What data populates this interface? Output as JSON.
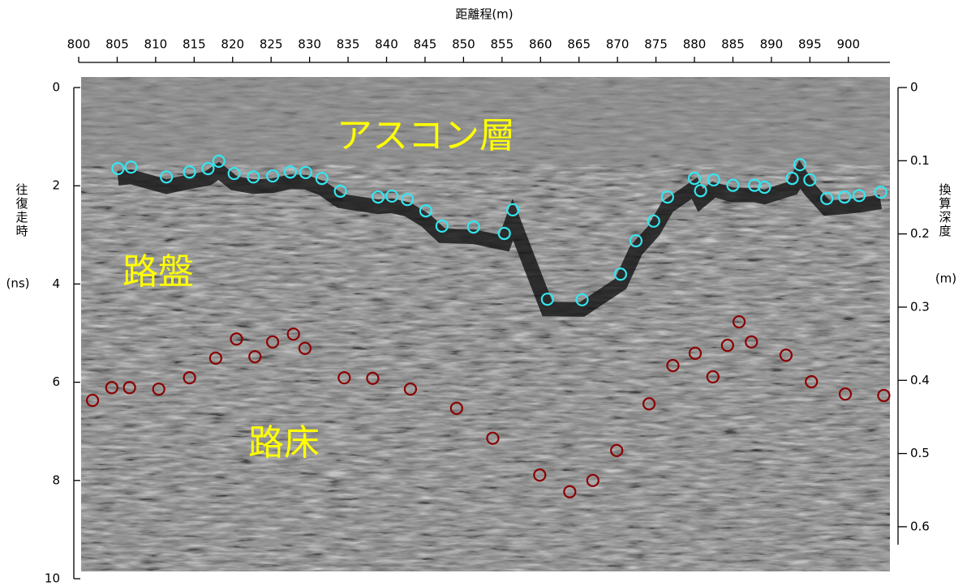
{
  "chart_data": {
    "type": "scatter",
    "x_label": "距離程(m)",
    "y_label": "往復走時",
    "y_unit": "(ns)",
    "y2_label": "換算深度",
    "y2_unit": "(m)",
    "annotations": [
      "アスコン層",
      "路盤",
      "路床"
    ],
    "xlim": [
      800,
      905.4
    ],
    "xticks": [
      800,
      805,
      810,
      815,
      820,
      825,
      830,
      835,
      840,
      845,
      850,
      855,
      860,
      865,
      870,
      875,
      880,
      885,
      890,
      895,
      900
    ],
    "ylim": [
      0,
      10
    ],
    "yticks": [
      0,
      2,
      4,
      6,
      8,
      10
    ],
    "y_reversed": true,
    "y2lim": [
      0,
      0.671
    ],
    "y2ticks": [
      0,
      0.1,
      0.2,
      0.3,
      0.4,
      0.5,
      0.6
    ],
    "series": [
      {
        "color": "#33e6f0",
        "x": [
          805.1,
          806.8,
          811.4,
          814.4,
          816.8,
          818.2,
          820.2,
          822.7,
          825.2,
          827.5,
          829.5,
          831.6,
          834.0,
          838.9,
          840.7,
          842.7,
          845.1,
          847.2,
          851.3,
          855.3,
          856.4,
          860.9,
          865.4,
          870.4,
          872.4,
          874.7,
          876.5,
          880.0,
          880.8,
          882.5,
          885.0,
          887.8,
          889.1,
          892.7,
          893.7,
          895.0,
          897.2,
          899.5,
          901.4,
          904.2
        ],
        "values": [
          1.65,
          1.62,
          1.82,
          1.72,
          1.65,
          1.5,
          1.75,
          1.82,
          1.8,
          1.72,
          1.73,
          1.85,
          2.11,
          2.23,
          2.21,
          2.28,
          2.51,
          2.82,
          2.84,
          2.97,
          2.49,
          4.31,
          4.32,
          3.8,
          3.12,
          2.72,
          2.23,
          1.85,
          2.1,
          1.88,
          1.99,
          1.99,
          2.03,
          1.85,
          1.57,
          1.88,
          2.26,
          2.23,
          2.2,
          2.13
        ]
      },
      {
        "color": "#8b0000",
        "x": [
          801.8,
          804.3,
          806.6,
          810.4,
          814.4,
          817.8,
          820.5,
          822.9,
          825.2,
          827.9,
          829.4,
          834.5,
          838.2,
          843.1,
          849.1,
          853.8,
          859.9,
          863.8,
          866.8,
          869.9,
          874.1,
          877.2,
          880.1,
          882.4,
          884.3,
          885.8,
          887.4,
          891.9,
          895.2,
          899.6,
          904.6
        ],
        "values": [
          6.37,
          6.11,
          6.11,
          6.14,
          5.91,
          5.51,
          5.12,
          5.48,
          5.18,
          5.02,
          5.31,
          5.91,
          5.92,
          6.14,
          6.53,
          7.14,
          7.89,
          8.23,
          8.0,
          7.39,
          6.44,
          5.66,
          5.41,
          5.89,
          5.25,
          4.77,
          5.18,
          5.45,
          5.99,
          6.24,
          6.27
        ]
      }
    ]
  }
}
